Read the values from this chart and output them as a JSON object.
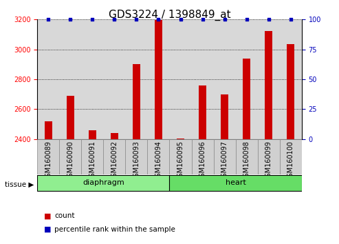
{
  "title": "GDS3224 / 1398849_at",
  "samples": [
    "GSM160089",
    "GSM160090",
    "GSM160091",
    "GSM160092",
    "GSM160093",
    "GSM160094",
    "GSM160095",
    "GSM160096",
    "GSM160097",
    "GSM160098",
    "GSM160099",
    "GSM160100"
  ],
  "counts": [
    2520,
    2690,
    2460,
    2440,
    2900,
    3195,
    2405,
    2760,
    2700,
    2940,
    3125,
    3035
  ],
  "percentiles": [
    100,
    100,
    100,
    100,
    100,
    100,
    100,
    100,
    100,
    100,
    100,
    100
  ],
  "groups": [
    {
      "label": "diaphragm",
      "start": 0,
      "end": 6,
      "color": "#90ee90"
    },
    {
      "label": "heart",
      "start": 6,
      "end": 12,
      "color": "#66dd66"
    }
  ],
  "bar_color": "#cc0000",
  "dot_color": "#0000bb",
  "ylim": [
    2400,
    3200
  ],
  "yticks": [
    2400,
    2600,
    2800,
    3000,
    3200
  ],
  "right_yticks": [
    0,
    25,
    50,
    75,
    100
  ],
  "right_ylim": [
    0,
    100
  ],
  "plot_bg_color": "#d8d8d8",
  "grid_color": "#000000",
  "title_fontsize": 11,
  "tick_label_fontsize": 7,
  "legend_items": [
    {
      "label": "count",
      "color": "#cc0000"
    },
    {
      "label": "percentile rank within the sample",
      "color": "#0000bb"
    }
  ]
}
